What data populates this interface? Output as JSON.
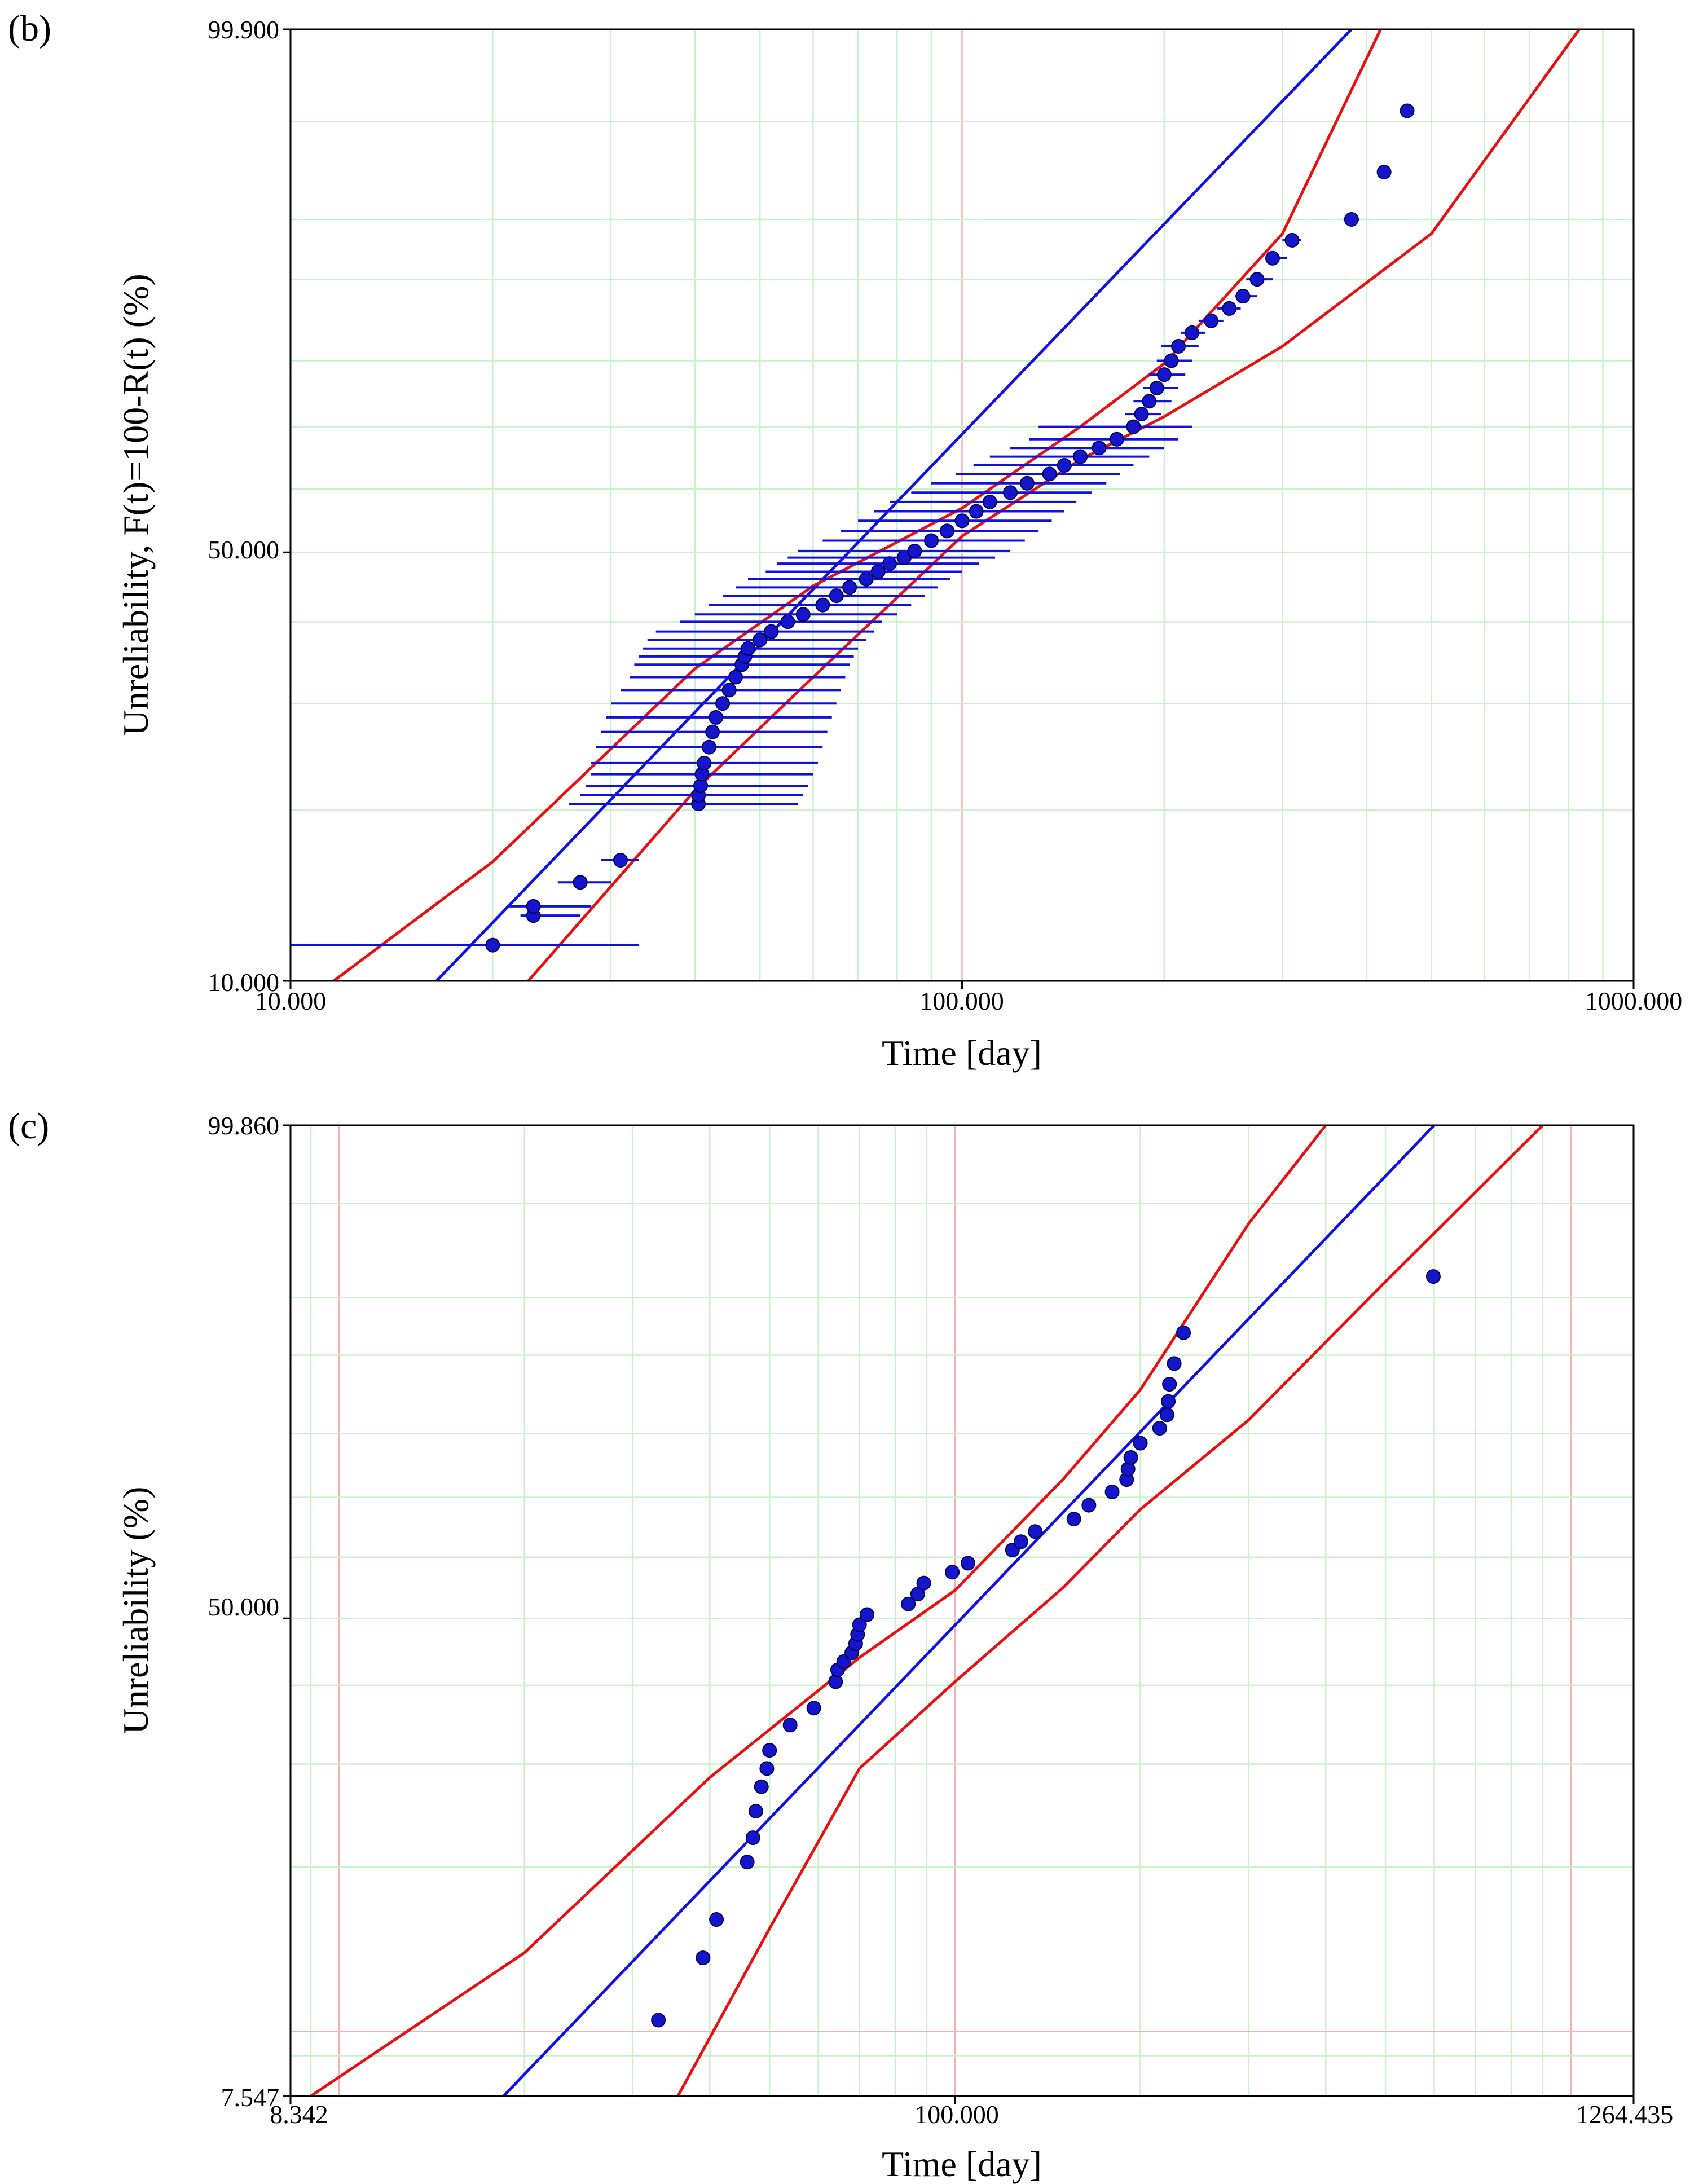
{
  "colors": {
    "fit": "#1010e0",
    "bounds": "#e81010",
    "point": "#1515cc",
    "grid_minor": "#c8f2c8",
    "grid_major": "#f3b3b3",
    "axes": "#000000"
  },
  "chart_data": [
    {
      "type": "scatter",
      "panel_label": "(b)",
      "title": "",
      "xlabel": "Time [day]",
      "ylabel": "Unreliability, F(t)=100-R(t) (%)",
      "x_scale": "log",
      "y_scale": "weibull",
      "xlim": [
        10,
        1000
      ],
      "ylim": [
        10,
        99.9
      ],
      "x_tick_labels": [
        "10.000",
        "100.000",
        "1000.000"
      ],
      "x_ticks": [
        10,
        100,
        1000
      ],
      "y_tick_labels": [
        "99.900",
        "50.000",
        "10.000"
      ],
      "y_ticks": [
        99.9,
        50,
        10
      ],
      "grid": true,
      "major_grid_x": [
        100
      ],
      "series": [
        {
          "name": "Weibull fit",
          "kind": "line",
          "x": [
            16.5,
            380
          ],
          "y": [
            10.0,
            99.9
          ]
        },
        {
          "name": "Upper confidence bound",
          "kind": "line",
          "x": [
            11.6,
            20,
            40,
            60,
            100,
            150,
            200,
            300,
            420
          ],
          "y": [
            10.0,
            16.3,
            34.0,
            45.0,
            56.9,
            70.0,
            79.6,
            94.0,
            99.9
          ]
        },
        {
          "name": "Lower confidence bound",
          "kind": "line",
          "x": [
            22.6,
            40,
            60,
            100,
            150,
            200,
            300,
            500,
            830
          ],
          "y": [
            10.0,
            21.6,
            33.0,
            52.5,
            64.7,
            71.6,
            82.0,
            94.0,
            99.9
          ]
        },
        {
          "name": "Failure data (with interval bars)",
          "kind": "points",
          "x": [
            20,
            23,
            23,
            27,
            31,
            40.5,
            40.5,
            40.8,
            41,
            41.3,
            42,
            42.5,
            43,
            44,
            45,
            46,
            47,
            47.5,
            48,
            50,
            52,
            55,
            58,
            62,
            65,
            68,
            72,
            75,
            78,
            82,
            85,
            90,
            95,
            100,
            105,
            110,
            118,
            125,
            135,
            142,
            150,
            160,
            170,
            180,
            185,
            190,
            195,
            200,
            205,
            210,
            220,
            235,
            250,
            262,
            275,
            290,
            310,
            380,
            425,
            460
          ],
          "y": [
            11.6,
            13.1,
            13.6,
            15.0,
            16.4,
            20.5,
            21.2,
            22.0,
            23.0,
            24.0,
            25.5,
            27.0,
            28.5,
            30.0,
            31.5,
            33.0,
            34.5,
            35.5,
            36.5,
            37.6,
            38.7,
            40.0,
            41.0,
            42.3,
            43.6,
            44.8,
            46.0,
            47.1,
            48.3,
            49.2,
            50.2,
            51.8,
            53.3,
            54.9,
            56.4,
            57.9,
            59.4,
            60.9,
            62.4,
            63.8,
            65.2,
            66.6,
            68.0,
            70.0,
            72.0,
            74.0,
            76.0,
            78.0,
            80.0,
            82.0,
            83.8,
            85.3,
            86.8,
            88.2,
            90.0,
            92.0,
            93.5,
            95.0,
            97.5,
            99.2
          ],
          "x_low": [
            10,
            22,
            21,
            25,
            29,
            26,
            27,
            27.5,
            28,
            28,
            28.5,
            29,
            29.5,
            30,
            31,
            32,
            32.5,
            33,
            33.5,
            34,
            35,
            38,
            40,
            42,
            44,
            46,
            48,
            51,
            53,
            55,
            57,
            62,
            66,
            70,
            74,
            78,
            84,
            90,
            98,
            104,
            110,
            118,
            126,
            130,
            175,
            180,
            186,
            190,
            195,
            198,
            212,
            225,
            240,
            255,
            265,
            285,
            300,
            370,
            415,
            455
          ],
          "x_high": [
            33,
            27,
            28,
            30,
            33,
            57,
            58,
            59,
            60,
            61,
            62,
            63,
            64,
            65,
            66,
            67,
            68,
            69,
            70,
            72,
            74,
            76,
            80,
            84,
            88,
            92,
            96,
            100,
            106,
            112,
            118,
            124,
            130,
            136,
            142,
            148,
            156,
            164,
            172,
            180,
            190,
            200,
            210,
            220,
            198,
            205,
            210,
            215,
            220,
            225,
            230,
            245,
            260,
            275,
            290,
            305,
            320,
            390,
            435,
            465
          ]
        }
      ]
    },
    {
      "type": "scatter",
      "panel_label": "(c)",
      "title": "",
      "xlabel": "Time [day]",
      "ylabel": "Unreliability (%)",
      "x_scale": "log",
      "y_scale": "weibull",
      "xlim": [
        8.342,
        1264.435
      ],
      "ylim": [
        7.547,
        99.86
      ],
      "x_tick_labels": [
        "8.342",
        "100.000",
        "1264.435"
      ],
      "x_ticks": [
        8.342,
        100,
        1264.435
      ],
      "y_tick_labels": [
        "99.860",
        "50.000",
        "7.547"
      ],
      "y_ticks": [
        99.86,
        50,
        7.547
      ],
      "grid": true,
      "major_grid_x": [
        10,
        100,
        1000
      ],
      "major_grid_y": [
        10
      ],
      "series": [
        {
          "name": "Weibull fit",
          "kind": "line",
          "x": [
            18.5,
            600
          ],
          "y": [
            7.547,
            99.86
          ]
        },
        {
          "name": "Upper confidence bound",
          "kind": "line",
          "x": [
            9.0,
            20,
            40,
            70,
            100,
            150,
            200,
            300,
            400
          ],
          "y": [
            7.547,
            14.0,
            28.5,
            44.0,
            54.5,
            73.0,
            86.0,
            98.5,
            99.86
          ]
        },
        {
          "name": "Lower confidence bound",
          "kind": "line",
          "x": [
            35.5,
            50,
            70,
            100,
            150,
            200,
            300,
            500,
            900
          ],
          "y": [
            7.547,
            15.5,
            29.5,
            40.5,
            55.0,
            68.0,
            82.0,
            96.0,
            99.86
          ]
        },
        {
          "name": "Failure data (with interval bars)",
          "kind": "points",
          "x": [
            33,
            39,
            41,
            46,
            47,
            47.5,
            48.5,
            49.5,
            50,
            54,
            59,
            64,
            64.5,
            66,
            68,
            69,
            69.5,
            70,
            72,
            84,
            87,
            89,
            99,
            105,
            124,
            128,
            135,
            156,
            165,
            180,
            190,
            191,
            193,
            200,
            215,
            221,
            222,
            223,
            227,
            235,
            598
          ],
          "y": [
            10.5,
            13.7,
            16.1,
            20.4,
            22.5,
            25.0,
            27.5,
            29.5,
            31.6,
            34.7,
            36.9,
            40.5,
            42.2,
            43.4,
            44.7,
            46.1,
            47.5,
            49.0,
            50.6,
            52.3,
            53.9,
            55.7,
            57.5,
            59.0,
            61.2,
            62.6,
            64.3,
            66.4,
            68.7,
            70.9,
            72.9,
            74.6,
            76.4,
            78.6,
            80.8,
            82.7,
            84.5,
            86.7,
            89.1,
            92.2,
            96.3
          ]
        }
      ]
    }
  ]
}
